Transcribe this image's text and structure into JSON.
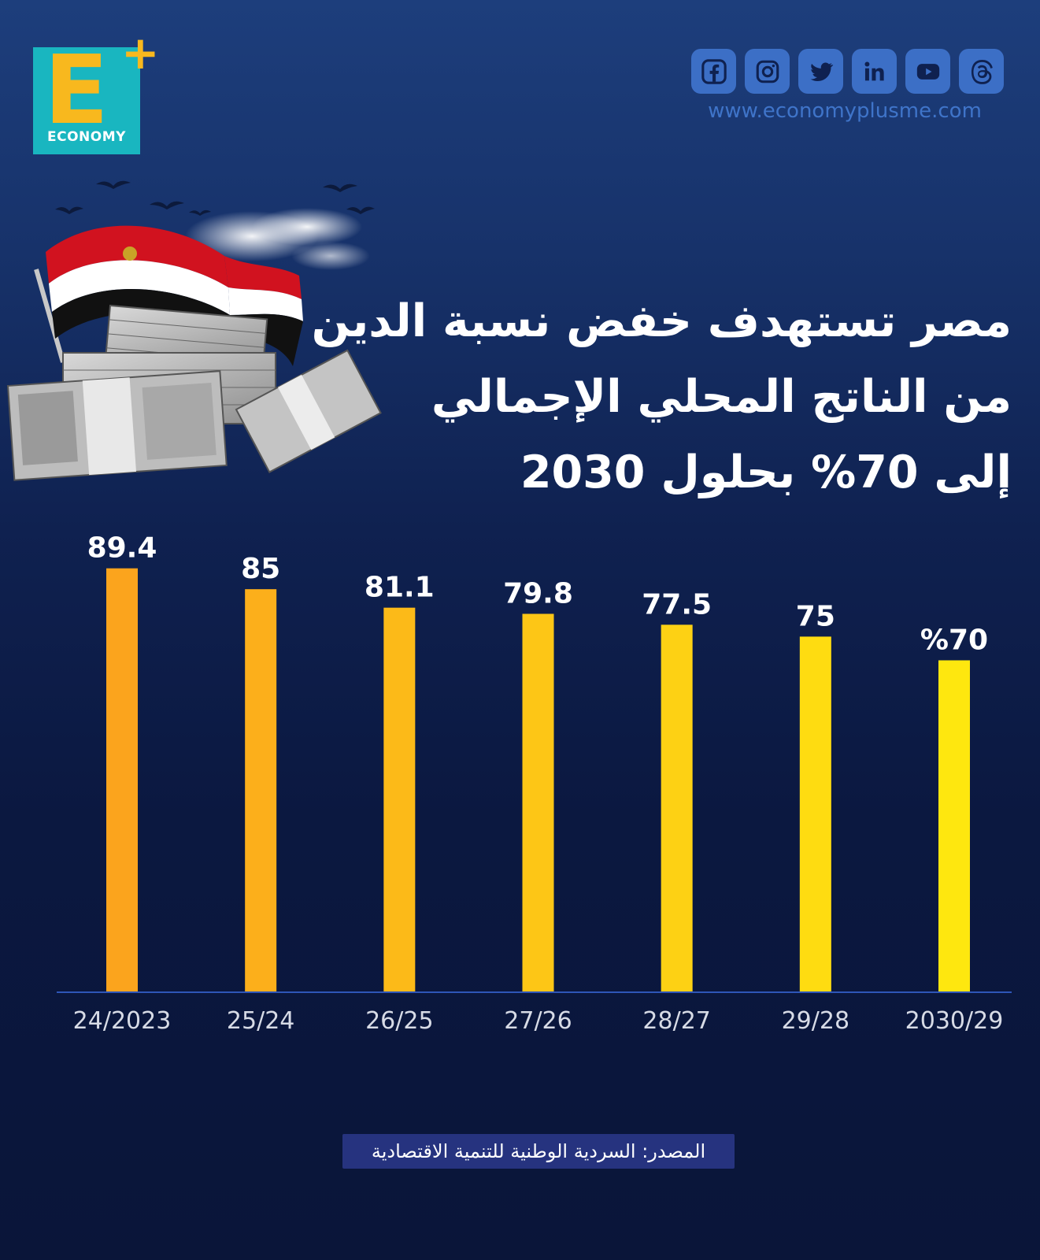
{
  "brand": {
    "logo_letter": "E",
    "logo_plus": "+",
    "logo_word": "ECONOMY",
    "website": "www.economyplusme.com"
  },
  "social_icons": [
    "facebook-icon",
    "instagram-icon",
    "twitter-icon",
    "linkedin-icon",
    "youtube-icon",
    "threads-icon"
  ],
  "headline": {
    "line1": "مصر تستهدف خفض نسبة الدين",
    "line2": "من الناتج المحلي الإجمالي",
    "line3": "إلى 70% بحلول 2030"
  },
  "source": "المصدر: السردية الوطنية للتنمية الاقتصادية",
  "colors": {
    "bar_start": "#fba41d",
    "bar_end": "#fee70f",
    "social_bg": "#3c6fc6",
    "logo_teal": "#19b6c0",
    "logo_yellow": "#f8b81e"
  },
  "chart_data": {
    "type": "bar",
    "categories": [
      "24/2023",
      "25/24",
      "26/25",
      "27/26",
      "28/27",
      "29/28",
      "2030/29"
    ],
    "values": [
      89.4,
      85,
      81.1,
      79.8,
      77.5,
      75,
      70
    ],
    "data_labels": [
      "89.4",
      "85",
      "81.1",
      "79.8",
      "77.5",
      "75",
      "%70"
    ],
    "ylim": [
      0,
      93
    ],
    "grid": false,
    "title": "",
    "xlabel": "",
    "ylabel": ""
  }
}
